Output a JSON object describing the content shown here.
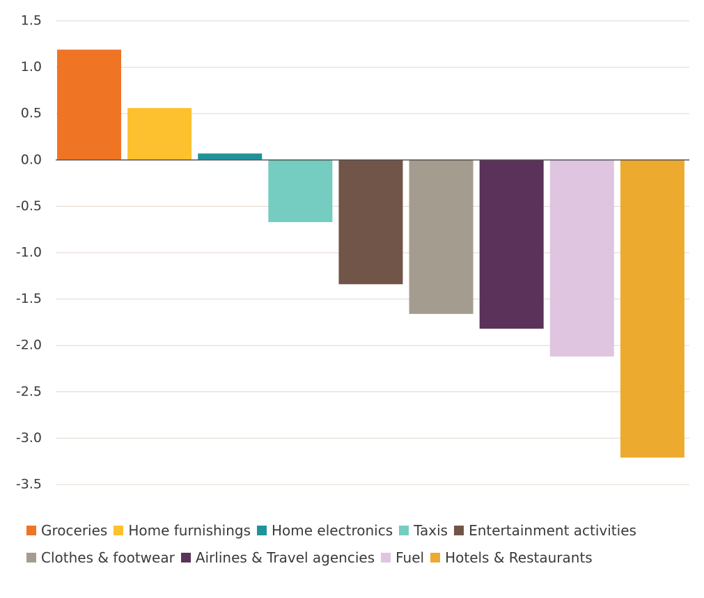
{
  "chart_data": {
    "type": "bar",
    "categories": [
      "Groceries",
      "Home furnishings",
      "Home electronics",
      "Taxis",
      "Entertainment activities",
      "Clothes & footwear",
      "Airlines & Travel agencies",
      "Fuel",
      "Hotels & Restaurants"
    ],
    "values": [
      1.19,
      0.56,
      0.07,
      -0.67,
      -1.34,
      -1.66,
      -1.82,
      -2.12,
      -3.21
    ],
    "colors": [
      "#ef7424",
      "#fdc02e",
      "#1f9399",
      "#74cdc0",
      "#705548",
      "#a49c8e",
      "#5b325a",
      "#dfc5df",
      "#ecab2f"
    ],
    "ylim": [
      -3.5,
      1.5
    ],
    "yticks": [
      1.5,
      {
        "value": 1.0,
        "label": "1.0"
      },
      0.5,
      {
        "value": 0.0,
        "label": "0.0"
      },
      -0.5,
      {
        "value": -1.0,
        "label": "-1.0"
      },
      -1.5,
      {
        "value": -2.0,
        "label": "-2.0"
      },
      -2.5,
      {
        "value": -3.0,
        "label": "-3.0"
      },
      -3.5
    ],
    "grid": true
  }
}
